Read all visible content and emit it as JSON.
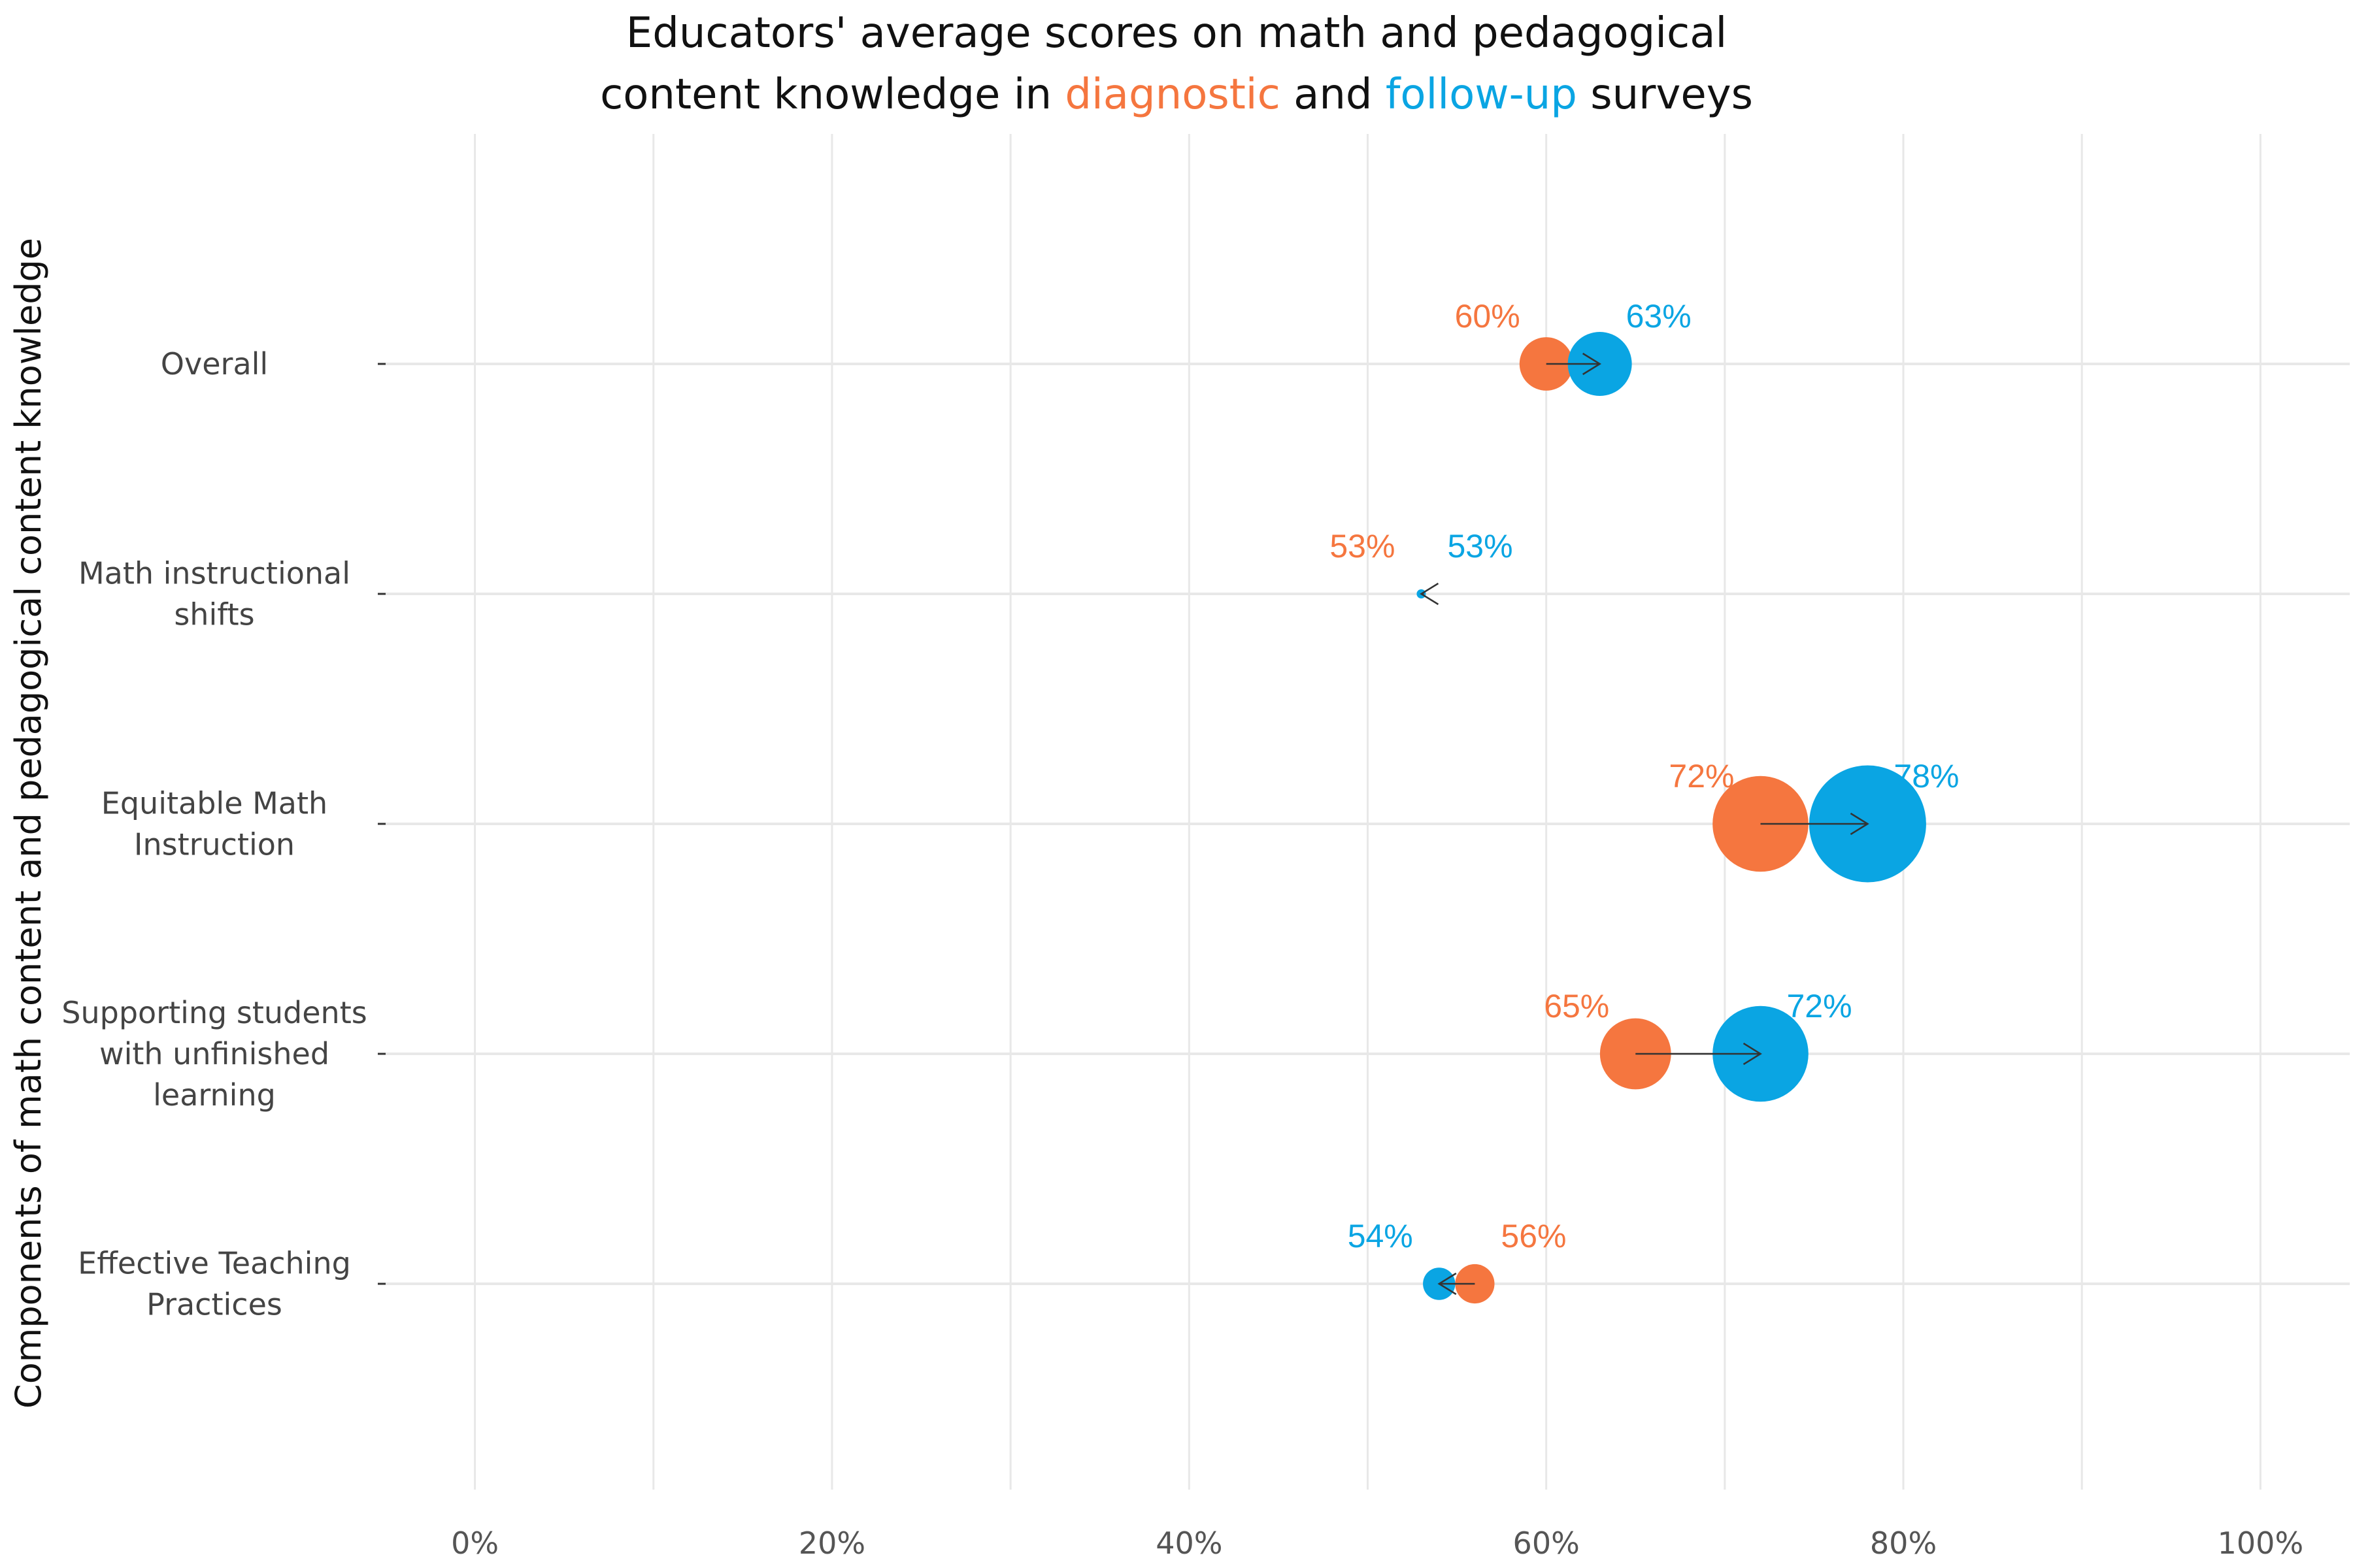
{
  "colors": {
    "diagnostic": "#F5763F",
    "followup": "#0AA5E3",
    "grid": "#E8E8E8",
    "arrow": "#333333"
  },
  "title": {
    "line1": "Educators' average scores on math and pedagogical",
    "line2_prefix": "content knowledge in ",
    "line2_diag": "diagnostic",
    "line2_and": " and ",
    "line2_follow": "follow-up",
    "line2_suffix": " surveys"
  },
  "chart_data": {
    "type": "dumbbell",
    "ylabel": "Components of math content and pedagogical content knowledge",
    "xlabel": "",
    "xlim": [
      -0.05,
      1.05
    ],
    "x_ticks": [
      0,
      0.2,
      0.4,
      0.6,
      0.8,
      1.0
    ],
    "x_tick_labels": [
      "0%",
      "20%",
      "40%",
      "60%",
      "80%",
      "100%"
    ],
    "categories": [
      [
        "Overall"
      ],
      [
        "Math instructional",
        "shifts"
      ],
      [
        "Equitable Math",
        "Instruction"
      ],
      [
        "Supporting students",
        "with unfinished",
        "learning"
      ],
      [
        "Effective Teaching",
        "Practices"
      ]
    ],
    "series": [
      {
        "name": "diagnostic",
        "values": [
          0.6,
          0.53,
          0.72,
          0.65,
          0.56
        ],
        "labels": [
          "60%",
          "53%",
          "72%",
          "65%",
          "56%"
        ]
      },
      {
        "name": "follow-up",
        "values": [
          0.63,
          0.53,
          0.78,
          0.72,
          0.54
        ],
        "labels": [
          "63%",
          "53%",
          "78%",
          "72%",
          "54%"
        ]
      }
    ]
  }
}
